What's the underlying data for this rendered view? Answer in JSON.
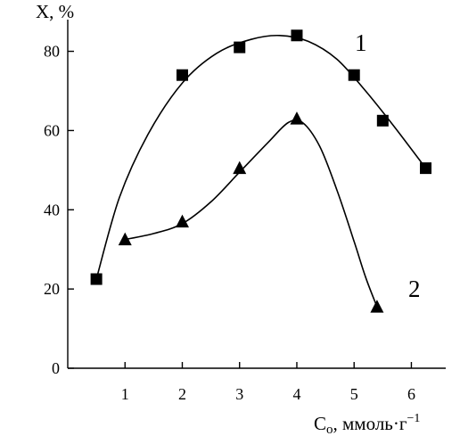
{
  "chart_data": {
    "type": "scatter",
    "y_axis_title": "X, %",
    "x_axis_title": {
      "main": "C",
      "subscript": "o",
      "unit": ", ммоль·г",
      "exponent": "−1"
    },
    "xlim": [
      0,
      6.6
    ],
    "ylim": [
      0,
      88
    ],
    "x_ticks": [
      1,
      2,
      3,
      4,
      5,
      6
    ],
    "y_ticks": [
      0,
      20,
      40,
      60,
      80
    ],
    "grid": false,
    "series": [
      {
        "name": "1",
        "marker": "square",
        "x": [
          0.5,
          2.0,
          3.0,
          4.0,
          5.0,
          5.5,
          6.25
        ],
        "y": [
          22.5,
          74,
          81,
          84,
          74,
          62.5,
          50.5
        ],
        "fit_curve": [
          [
            0.5,
            22.5
          ],
          [
            0.9,
            43
          ],
          [
            1.4,
            59
          ],
          [
            2.0,
            72
          ],
          [
            2.6,
            79.5
          ],
          [
            3.2,
            83
          ],
          [
            3.7,
            84
          ],
          [
            4.2,
            82.5
          ],
          [
            4.7,
            78
          ],
          [
            5.2,
            70
          ],
          [
            5.7,
            61
          ],
          [
            6.25,
            50.5
          ]
        ]
      },
      {
        "name": "2",
        "marker": "triangle",
        "x": [
          1.0,
          2.0,
          3.0,
          4.0,
          5.4
        ],
        "y": [
          32.5,
          37,
          50.5,
          63,
          15.5
        ],
        "fit_curve": [
          [
            1.0,
            32.5
          ],
          [
            1.5,
            34
          ],
          [
            2.0,
            36.5
          ],
          [
            2.5,
            42
          ],
          [
            3.0,
            49.5
          ],
          [
            3.5,
            57
          ],
          [
            3.85,
            62
          ],
          [
            4.1,
            62
          ],
          [
            4.4,
            56
          ],
          [
            4.7,
            45
          ],
          [
            5.0,
            32
          ],
          [
            5.2,
            23
          ],
          [
            5.4,
            15.5
          ]
        ]
      }
    ]
  }
}
